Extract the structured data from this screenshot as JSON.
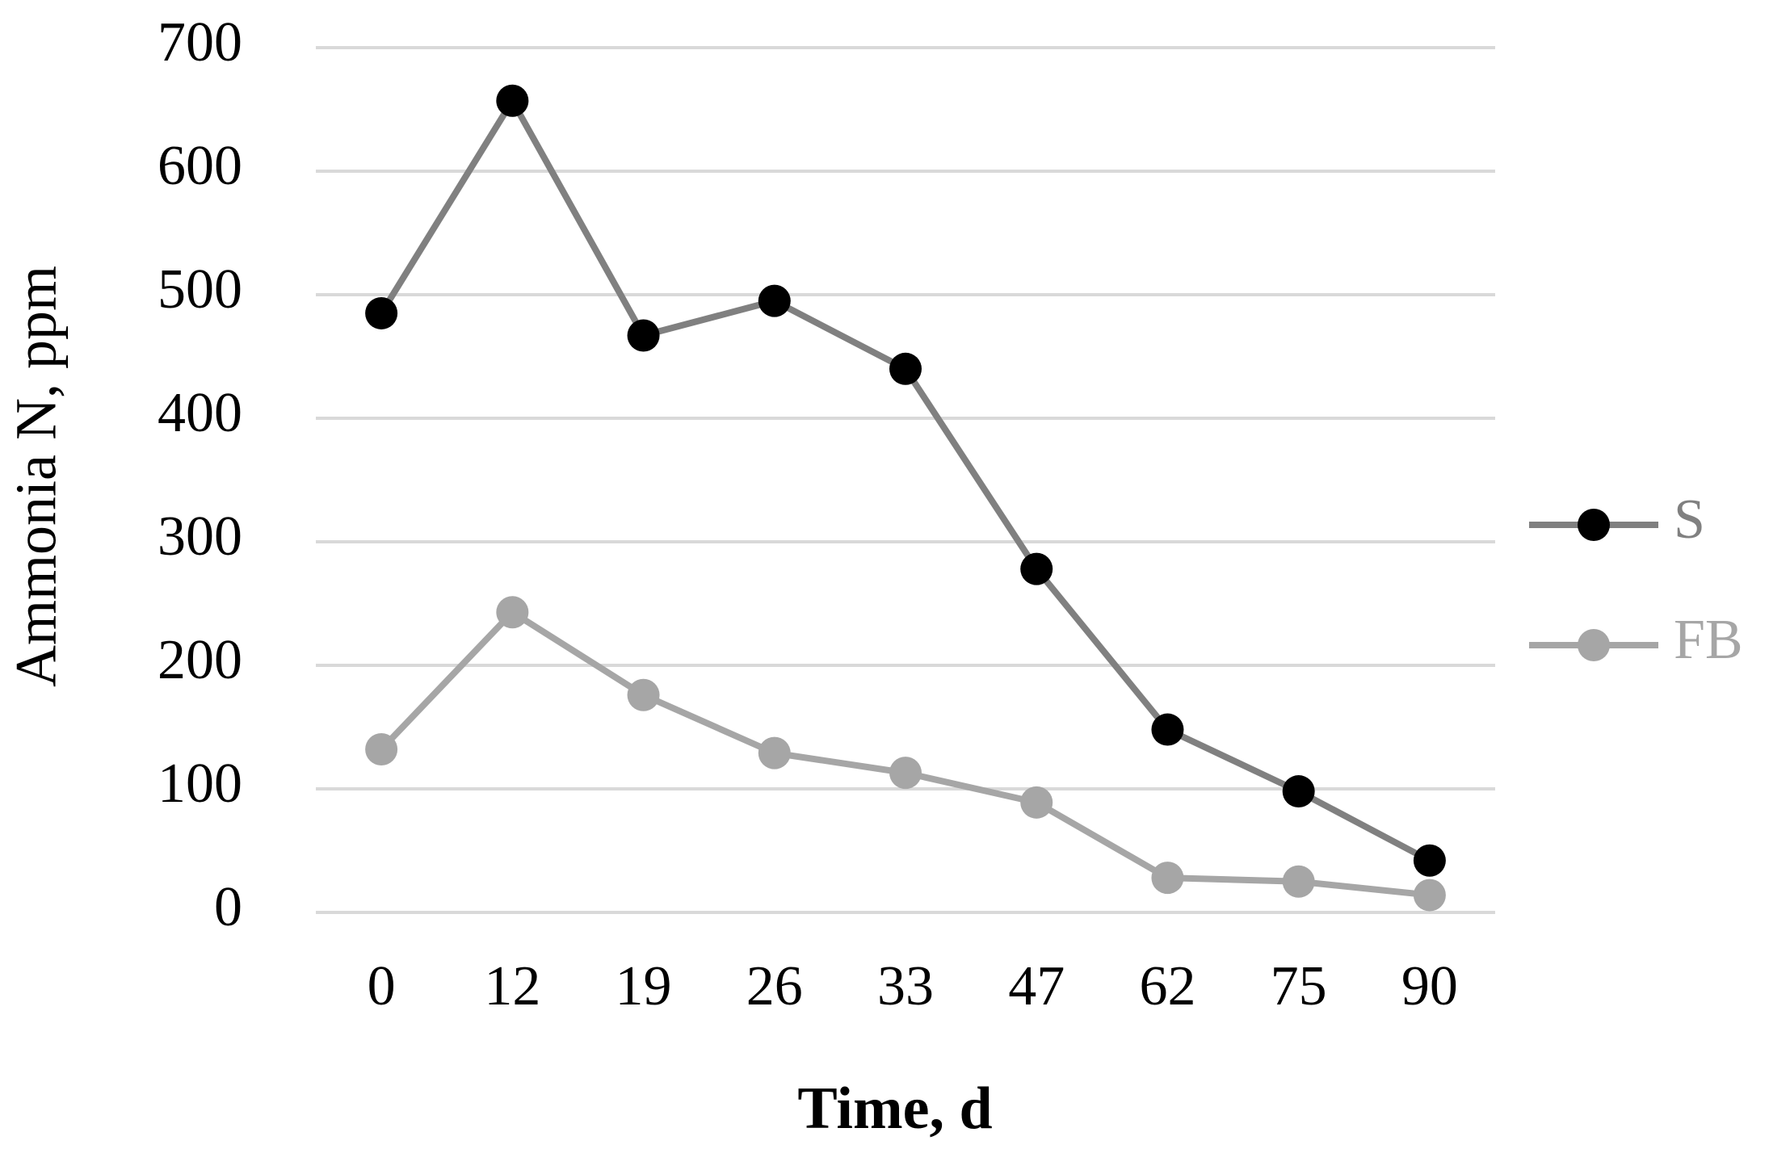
{
  "chart_data": {
    "type": "line",
    "x_label": "Time, d",
    "y_label": "Ammonia N, ppm",
    "categories": [
      "0",
      "12",
      "19",
      "26",
      "33",
      "47",
      "62",
      "75",
      "90"
    ],
    "series": [
      {
        "name": "S",
        "color": "#808080",
        "marker_color": "#000000",
        "values": [
          485,
          657,
          467,
          495,
          440,
          278,
          148,
          98,
          42
        ]
      },
      {
        "name": "FB",
        "color": "#a6a6a6",
        "marker_color": "#a6a6a6",
        "values": [
          132,
          243,
          176,
          129,
          113,
          89,
          28,
          25,
          14
        ]
      }
    ],
    "ylim": [
      0,
      700
    ],
    "yticks": [
      0,
      100,
      200,
      300,
      400,
      500,
      600,
      700
    ],
    "grid": true,
    "legend": "right"
  }
}
